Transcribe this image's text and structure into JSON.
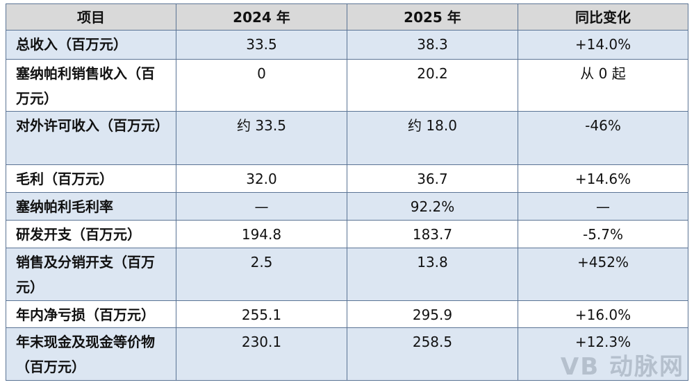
{
  "table": {
    "header": [
      "项目",
      "2024 年",
      "2025 年",
      "同比变化"
    ],
    "rows": [
      [
        "总收入（百万元）",
        "33.5",
        "38.3",
        "+14.0%"
      ],
      [
        "塞纳帕利销售收入（百万元）",
        "0",
        "20.2",
        "从 0 起"
      ],
      [
        "对外许可收入（百万元）",
        "约 33.5",
        "约 18.0",
        "-46%"
      ],
      [
        "毛利（百万元）",
        "32.0",
        "36.7",
        "+14.6%"
      ],
      [
        "塞纳帕利毛利率",
        "—",
        "92.2%",
        "—"
      ],
      [
        "研发开支（百万元）",
        "194.8",
        "183.7",
        "-5.7%"
      ],
      [
        "销售及分销开支（百万元）",
        "2.5",
        "13.8",
        "+452%"
      ],
      [
        "年内净亏损（百万元）",
        "255.1",
        "295.9",
        "+16.0%"
      ],
      [
        "年末现金及现金等价物（百万元）",
        "230.1",
        "258.5",
        "+12.3%"
      ]
    ]
  },
  "watermark": "VB 动脉网"
}
